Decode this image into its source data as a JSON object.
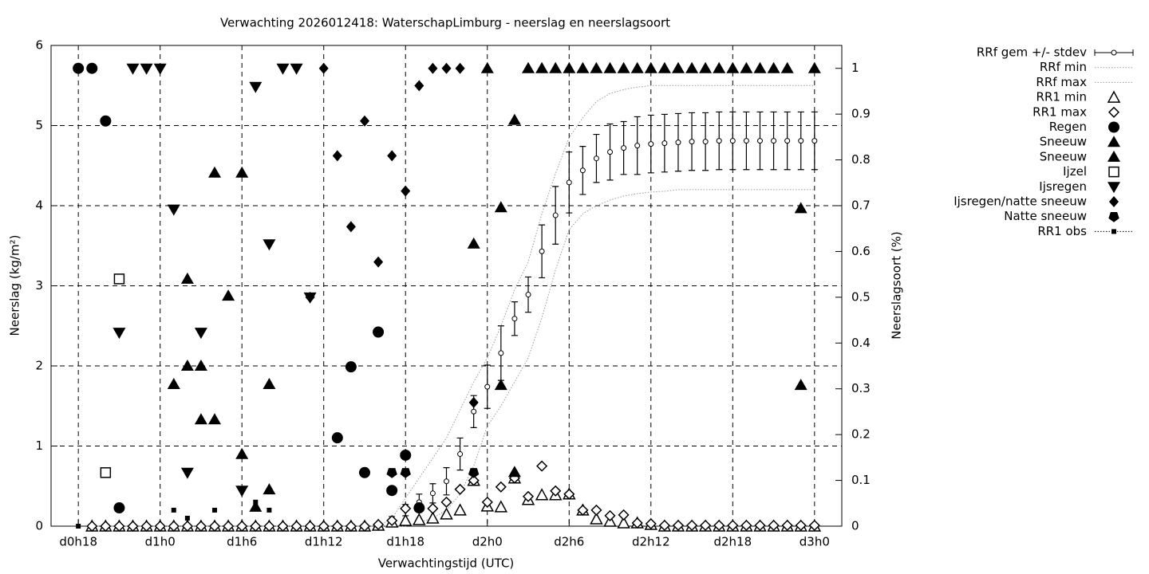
{
  "chart_data": {
    "type": "forecast",
    "title": "Verwachting 2026012418: WaterschapLimburg - neerslag en neerslagsoort",
    "x_label": "Verwachtingstijd (UTC)",
    "y_label": "Neerslag (kg/m²)",
    "y2_label": "Neerslagsoort (%)",
    "xlim": [
      16,
      74
    ],
    "xticks": [
      {
        "value": 18,
        "label": "d0h18"
      },
      {
        "value": 24,
        "label": "d1h0"
      },
      {
        "value": 30,
        "label": "d1h6"
      },
      {
        "value": 36,
        "label": "d1h12"
      },
      {
        "value": 42,
        "label": "d1h18"
      },
      {
        "value": 48,
        "label": "d2h0"
      },
      {
        "value": 54,
        "label": "d2h6"
      },
      {
        "value": 60,
        "label": "d2h12"
      },
      {
        "value": 66,
        "label": "d2h18"
      },
      {
        "value": 72,
        "label": "d3h0"
      }
    ],
    "ylim": [
      0,
      6
    ],
    "yticks": [
      0,
      1,
      2,
      3,
      4,
      5,
      6
    ],
    "y2lim": [
      0,
      1.05
    ],
    "y2ticks": [
      0,
      0.1,
      0.2,
      0.3,
      0.4,
      0.5,
      0.6,
      0.7,
      0.8,
      0.9,
      1
    ],
    "grid": true,
    "legend": "right",
    "x": [
      18,
      19,
      20,
      21,
      22,
      23,
      24,
      25,
      26,
      27,
      28,
      29,
      30,
      31,
      32,
      33,
      34,
      35,
      36,
      37,
      38,
      39,
      40,
      41,
      42,
      43,
      44,
      45,
      46,
      47,
      48,
      49,
      50,
      51,
      52,
      53,
      54,
      55,
      56,
      57,
      58,
      59,
      60,
      61,
      62,
      63,
      64,
      65,
      66,
      67,
      68,
      69,
      70,
      71,
      72
    ],
    "series": [
      {
        "name": "RRf gem +/- stdev",
        "marker": "errorbar",
        "color": "#000000",
        "values": [
          null,
          0,
          0,
          0,
          0,
          0,
          0,
          0,
          0,
          0,
          0,
          0,
          0,
          0,
          0,
          0,
          0,
          0,
          0,
          0,
          0,
          0,
          0.02,
          0.08,
          0.2,
          0.3,
          0.41,
          0.56,
          0.9,
          1.43,
          1.74,
          2.16,
          2.59,
          2.89,
          3.43,
          3.88,
          4.29,
          4.44,
          4.59,
          4.67,
          4.72,
          4.75,
          4.77,
          4.78,
          4.79,
          4.8,
          4.8,
          4.81,
          4.81,
          4.81,
          4.81,
          4.81,
          4.81,
          4.81,
          4.81
        ],
        "stdev": [
          null,
          0,
          0,
          0,
          0,
          0,
          0,
          0,
          0,
          0,
          0,
          0,
          0,
          0,
          0,
          0,
          0,
          0,
          0,
          0,
          0,
          0,
          0.02,
          0.04,
          0.07,
          0.1,
          0.12,
          0.17,
          0.2,
          0.2,
          0.27,
          0.34,
          0.21,
          0.22,
          0.33,
          0.36,
          0.38,
          0.3,
          0.3,
          0.35,
          0.33,
          0.36,
          0.36,
          0.36,
          0.36,
          0.36,
          0.36,
          0.36,
          0.36,
          0.36,
          0.36,
          0.36,
          0.36,
          0.36,
          0.36
        ]
      },
      {
        "name": "RRf min",
        "marker": "dotted",
        "color": "#999999",
        "values": [
          null,
          0,
          0,
          0,
          0,
          0,
          0,
          0,
          0,
          0,
          0,
          0,
          0,
          0,
          0,
          0,
          0,
          0,
          0,
          0,
          0,
          0,
          0,
          0,
          0,
          0.05,
          0.1,
          0.2,
          0.4,
          0.75,
          1.25,
          1.5,
          1.8,
          2.1,
          2.6,
          3.2,
          3.7,
          3.9,
          4.0,
          4.07,
          4.12,
          4.15,
          4.17,
          4.18,
          4.2,
          4.2,
          4.2,
          4.2,
          4.2,
          4.2,
          4.2,
          4.2,
          4.2,
          4.2,
          4.2
        ]
      },
      {
        "name": "RRf max",
        "marker": "dotted",
        "color": "#999999",
        "values": [
          null,
          0,
          0,
          0,
          0,
          0,
          0,
          0,
          0,
          0,
          0,
          0,
          0,
          0,
          0,
          0,
          0,
          0,
          0,
          0,
          0,
          0,
          0,
          0.1,
          0.35,
          0.6,
          0.85,
          1.1,
          1.45,
          1.8,
          2.1,
          2.5,
          2.95,
          3.3,
          3.9,
          4.4,
          4.85,
          5.1,
          5.3,
          5.4,
          5.45,
          5.48,
          5.5,
          5.5,
          5.5,
          5.5,
          5.5,
          5.5,
          5.5,
          5.5,
          5.5,
          5.5,
          5.5,
          5.5,
          5.5
        ]
      },
      {
        "name": "RR1 min",
        "marker": "triangle-open",
        "color": "#000000",
        "values": [
          null,
          0,
          0,
          0,
          0,
          0,
          0,
          0,
          0,
          0,
          0,
          0,
          0,
          0,
          0,
          0,
          0,
          0,
          0,
          0,
          0,
          0,
          0.01,
          0.05,
          0.07,
          0.08,
          0.1,
          0.15,
          0.2,
          0.57,
          0.25,
          0.24,
          0.6,
          0.33,
          0.39,
          0.39,
          0.4,
          0.2,
          0.09,
          0.06,
          0.04,
          0.04,
          0.02,
          0,
          0,
          0,
          0,
          0,
          0,
          0,
          0,
          0,
          0,
          0,
          0
        ]
      },
      {
        "name": "RR1 max",
        "marker": "diamond-open",
        "color": "#000000",
        "values": [
          null,
          0,
          0,
          0,
          0,
          0,
          0,
          0,
          0,
          0,
          0,
          0,
          0,
          0,
          0,
          0,
          0,
          0,
          0,
          0,
          0,
          0,
          0.02,
          0.07,
          0.22,
          0.22,
          0.22,
          0.3,
          0.46,
          0.57,
          0.3,
          0.49,
          0.6,
          0.37,
          0.75,
          0.44,
          0.4,
          0.2,
          0.2,
          0.13,
          0.14,
          0.04,
          0.03,
          0.01,
          0.01,
          0.01,
          0.01,
          0.01,
          0.01,
          0.01,
          0.01,
          0.01,
          0.01,
          0.01,
          0.01
        ]
      },
      {
        "name": "Regen",
        "marker": "circle",
        "color": "#000000",
        "axis": "y2",
        "x": [
          18,
          19,
          20,
          21,
          37,
          38,
          39,
          40,
          41,
          42,
          43
        ],
        "values": [
          1,
          1,
          0.885,
          0.04,
          0.193,
          0.348,
          0.117,
          0.424,
          0.078,
          0.155,
          0.04
        ]
      },
      {
        "name": "Sneeuw",
        "marker": "triangle",
        "color": "#000000",
        "axis": "y2",
        "x": [
          25,
          26,
          27,
          28,
          29,
          30,
          31,
          32,
          47,
          48,
          49,
          50,
          51,
          52,
          53,
          54,
          55,
          56,
          57,
          58,
          59,
          60,
          61,
          62,
          63,
          64,
          65,
          66,
          67,
          68,
          69,
          70,
          71,
          72
        ],
        "values": [
          0.31,
          0.54,
          0.35,
          0.772,
          0.503,
          0.772,
          0.042,
          0.31,
          0.617,
          1,
          0.696,
          0.887,
          1,
          1,
          1,
          1,
          1,
          1,
          1,
          1,
          1,
          1,
          1,
          1,
          1,
          1,
          1,
          1,
          1,
          1,
          1,
          1,
          0.694,
          1
        ]
      },
      {
        "name": "Sneeuw",
        "marker": "triangle",
        "color": "#000000",
        "axis": "y2",
        "x": [
          26,
          27,
          28,
          30,
          32,
          49,
          50,
          71
        ],
        "values": [
          0.35,
          0.233,
          0.233,
          0.157,
          0.08,
          0.308,
          0.118,
          0.308
        ]
      },
      {
        "name": "Ijzel",
        "marker": "square-open",
        "color": "#000000",
        "axis": "y2",
        "x": [
          20,
          21
        ],
        "values": [
          0.117,
          0.54
        ]
      },
      {
        "name": "Ijsregen",
        "marker": "triangle-down",
        "color": "#000000",
        "axis": "y2",
        "x": [
          21,
          22,
          23,
          24,
          25,
          26,
          27,
          30,
          31,
          32,
          33,
          34,
          35
        ],
        "values": [
          0.423,
          1,
          1,
          1,
          0.692,
          0.117,
          0.423,
          0.078,
          0.96,
          0.616,
          1,
          1,
          0.5
        ]
      },
      {
        "name": "Ijsregen/natte sneeuw",
        "marker": "diamond",
        "color": "#000000",
        "axis": "y2",
        "x": [
          35,
          36,
          37,
          38,
          39,
          40,
          41,
          42,
          43,
          44,
          45,
          46,
          47
        ],
        "values": [
          0.5,
          1,
          0.809,
          0.654,
          0.885,
          0.577,
          0.809,
          0.732,
          0.962,
          1,
          1,
          1,
          0.27
        ]
      },
      {
        "name": "Natte sneeuw",
        "marker": "pentagon",
        "color": "#000000",
        "axis": "y2",
        "x": [
          41,
          42,
          47
        ],
        "values": [
          0.117,
          0.117,
          0.117
        ]
      },
      {
        "name": "RR1 obs",
        "marker": "square-small",
        "color": "#000000",
        "values": [
          0,
          null,
          null,
          null,
          null,
          null,
          null,
          0.2,
          0.1,
          null,
          0.2,
          null,
          null,
          0.3,
          0.2,
          null,
          null,
          null,
          null,
          null,
          null,
          null,
          null,
          null,
          null,
          null,
          null,
          null,
          null,
          null,
          null,
          null,
          null,
          null,
          null,
          null,
          null,
          null,
          null,
          null,
          null,
          null,
          null,
          null,
          null,
          null,
          null,
          null,
          null,
          null,
          null,
          null,
          null,
          null,
          null
        ]
      }
    ]
  }
}
